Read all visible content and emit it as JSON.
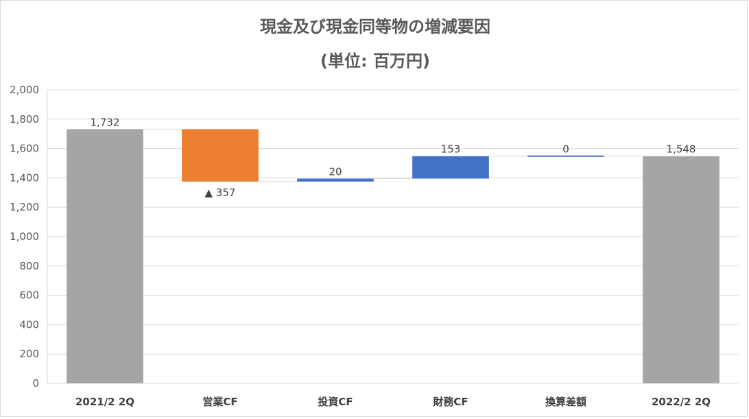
{
  "chart_data": {
    "type": "bar",
    "subtype": "waterfall",
    "title": "現金及び現金同等物の増減要因",
    "subtitle": "(単位: 百万円)",
    "categories": [
      "2021/2 2Q",
      "営業CF",
      "投資CF",
      "財務CF",
      "換算差額",
      "2022/2 2Q"
    ],
    "bars": [
      {
        "category": "2021/2 2Q",
        "kind": "total",
        "start": 0,
        "end": 1732,
        "label": "1,732",
        "color": "#a5a5a5"
      },
      {
        "category": "営業CF",
        "kind": "decrease",
        "start": 1732,
        "end": 1375,
        "label": "▲ 357",
        "color": "#ed7d31"
      },
      {
        "category": "投資CF",
        "kind": "increase",
        "start": 1375,
        "end": 1395,
        "label": "20",
        "color": "#4472c4"
      },
      {
        "category": "財務CF",
        "kind": "increase",
        "start": 1395,
        "end": 1548,
        "label": "153",
        "color": "#4472c4"
      },
      {
        "category": "換算差額",
        "kind": "increase",
        "start": 1548,
        "end": 1548,
        "label": "0",
        "color": "#4472c4"
      },
      {
        "category": "2022/2 2Q",
        "kind": "total",
        "start": 0,
        "end": 1548,
        "label": "1,548",
        "color": "#a5a5a5"
      }
    ],
    "ylim": [
      0,
      2000
    ],
    "yticks": [
      "0",
      "200",
      "400",
      "600",
      "800",
      "1,000",
      "1,200",
      "1,400",
      "1,600",
      "1,800",
      "2,000"
    ],
    "grid": true,
    "legend": "none"
  }
}
